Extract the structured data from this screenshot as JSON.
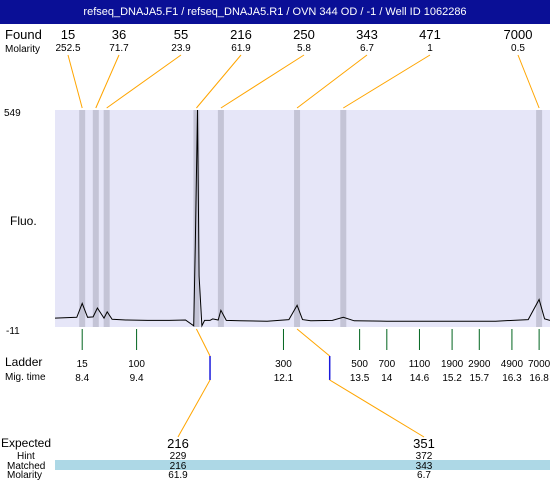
{
  "header": {
    "title": "refseq_DNAJA5.F1 / refseq_DNAJA5.R1 / OVN 344 OD / -1 / Well ID 1062286"
  },
  "labels": {
    "found": "Found",
    "molarity": "Molarity",
    "fluo": "Fluo.",
    "ladder": "Ladder",
    "mig_time": "Mig. time",
    "expected": "Expected",
    "hint": "Hint",
    "matched": "Matched",
    "molarity_bottom": "Molarity"
  },
  "colors": {
    "title_bg": "#0a0f96",
    "plot_bg": "#e6e6f8",
    "band": "#c4c4d6",
    "connector": "#ffa500",
    "ladder_tick": "#00641e",
    "expected_marker": "#1a1adc",
    "matched_row": "#add8e6"
  },
  "chart_data": {
    "type": "line",
    "title": "",
    "ylabel": "Fluo.",
    "y_ticks": [
      "549",
      "-11"
    ],
    "ylim": [
      -11,
      549
    ],
    "xlim": [
      7.9,
      17.0
    ],
    "found": [
      {
        "size": "15",
        "molarity": "252.5",
        "time": 8.4
      },
      {
        "size": "36",
        "molarity": "71.7",
        "time": 8.65
      },
      {
        "size": "55",
        "molarity": "23.9",
        "time": 8.85
      },
      {
        "size": "216",
        "molarity": "61.9",
        "time": 10.5
      },
      {
        "size": "250",
        "molarity": "5.8",
        "time": 10.95
      },
      {
        "size": "343",
        "molarity": "6.7",
        "time": 12.35
      },
      {
        "size": "471",
        "molarity": "1",
        "time": 13.2
      },
      {
        "size": "7000",
        "molarity": "0.5",
        "time": 16.8
      }
    ],
    "ladder": [
      {
        "size": "15",
        "time": "8.4",
        "t": 8.4
      },
      {
        "size": "100",
        "time": "9.4",
        "t": 9.4
      },
      {
        "size": "300",
        "time": "12.1",
        "t": 12.1
      },
      {
        "size": "500",
        "time": "13.5",
        "t": 13.5
      },
      {
        "size": "700",
        "time": "14",
        "t": 14.0
      },
      {
        "size": "1100",
        "time": "14.6",
        "t": 14.6
      },
      {
        "size": "1900",
        "time": "15.2",
        "t": 15.2
      },
      {
        "size": "2900",
        "time": "15.7",
        "t": 15.7
      },
      {
        "size": "4900",
        "time": "16.3",
        "t": 16.3
      },
      {
        "size": "7000",
        "time": "16.8",
        "t": 16.8
      }
    ],
    "expected": [
      {
        "size": "216",
        "hint": "229",
        "matched": "216",
        "molarity": "61.9",
        "time": 10.75
      },
      {
        "size": "351",
        "hint": "372",
        "matched": "343",
        "molarity": "6.7",
        "time": 12.95
      }
    ],
    "trace": {
      "x": [
        7.9,
        8.3,
        8.4,
        8.5,
        8.6,
        8.68,
        8.8,
        8.86,
        8.95,
        9.2,
        9.6,
        10.0,
        10.3,
        10.45,
        10.48,
        10.52,
        10.55,
        10.6,
        10.65,
        10.75,
        10.8,
        10.9,
        10.95,
        11.05,
        11.3,
        11.8,
        12.2,
        12.35,
        12.45,
        12.6,
        13.0,
        13.2,
        13.4,
        14.0,
        15.0,
        16.0,
        16.6,
        16.8,
        16.9,
        17.0
      ],
      "y": [
        12,
        14,
        50,
        14,
        15,
        38,
        12,
        28,
        9,
        7,
        6,
        6,
        7,
        -8,
        200,
        549,
        120,
        -8,
        6,
        6,
        10,
        7,
        32,
        6,
        5,
        4,
        8,
        45,
        8,
        5,
        6,
        14,
        5,
        4,
        4,
        4,
        8,
        60,
        10,
        6
      ]
    }
  }
}
